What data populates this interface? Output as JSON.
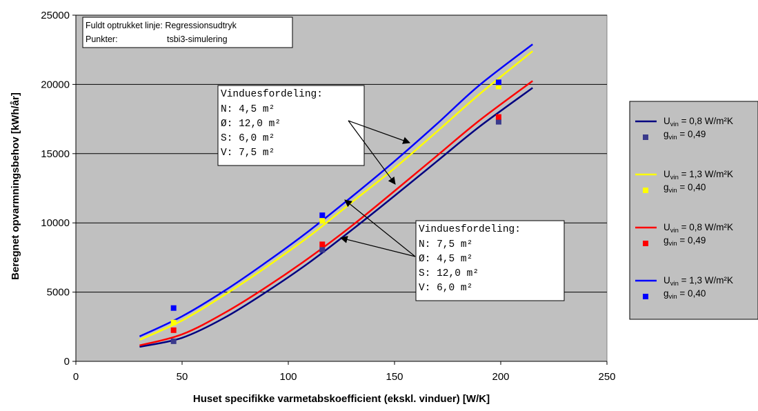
{
  "chart_data": {
    "type": "line",
    "xlabel": "Huset specifikke varmetabskoefficient (ekskl. vinduer)  [W/K]",
    "ylabel": "Beregnet opvarmningsbehov  [kWh/år]",
    "xlim": [
      0,
      250
    ],
    "ylim": [
      0,
      25000
    ],
    "x_ticks": [
      "0",
      "50",
      "100",
      "150",
      "200",
      "250"
    ],
    "y_ticks": [
      "0",
      "5000",
      "10000",
      "15000",
      "20000",
      "25000"
    ],
    "grid": "horizontal",
    "legend_position": "right",
    "note": {
      "line1": "Fuldt optrukket linje: Regressionsudtryk",
      "line2_label": "Punkter:",
      "line2_value": "tsbi3-simulering"
    },
    "annotation_top": {
      "title": "Vinduesfordeling:",
      "rows": [
        "N:  4,5 m²",
        "Ø: 12,0 m²",
        "S:  6,0 m²",
        "V:  7,5 m²"
      ]
    },
    "annotation_bottom": {
      "title": "Vinduesfordeling:",
      "rows": [
        "N:  7,5 m²",
        "Ø:  4,5 m²",
        "S: 12,0 m²",
        "V:  6,0 m²"
      ]
    },
    "series": [
      {
        "color": "#000080",
        "legend_u": "U",
        "legend_u_sub": "vin",
        "legend_u_val": " = 0,8 W/m²K",
        "legend_g": "g",
        "legend_g_sub": "vin",
        "legend_g_val": " = 0,49",
        "marker_color": "#3a3a8c",
        "line": [
          [
            30,
            1050
          ],
          [
            50,
            1700
          ],
          [
            70,
            3150
          ],
          [
            90,
            5050
          ],
          [
            110,
            7150
          ],
          [
            130,
            9500
          ],
          [
            150,
            11950
          ],
          [
            170,
            14450
          ],
          [
            190,
            16950
          ],
          [
            215,
            19750
          ]
        ],
        "points": [
          [
            46,
            1450
          ],
          [
            116,
            8050
          ],
          [
            199,
            17300
          ]
        ]
      },
      {
        "color": "#ffff00",
        "legend_u": "U",
        "legend_u_sub": "vin",
        "legend_u_val": " = 1,3 W/m²K",
        "legend_g": "g",
        "legend_g_sub": "vin",
        "legend_g_val": " = 0,40",
        "marker_color": "#ffff00",
        "line": [
          [
            30,
            1550
          ],
          [
            50,
            2950
          ],
          [
            70,
            4800
          ],
          [
            90,
            6850
          ],
          [
            110,
            9050
          ],
          [
            130,
            11500
          ],
          [
            150,
            13950
          ],
          [
            170,
            16600
          ],
          [
            190,
            19300
          ],
          [
            215,
            22400
          ]
        ],
        "points": [
          [
            46,
            2800
          ],
          [
            116,
            10150
          ],
          [
            199,
            19850
          ]
        ]
      },
      {
        "color": "#ff0000",
        "legend_u": "U",
        "legend_u_sub": "vin",
        "legend_u_val": " = 0,8 W/m²K",
        "legend_g": "g",
        "legend_g_sub": "vin",
        "legend_g_val": " = 0,49",
        "marker_color": "#ff0000",
        "line": [
          [
            30,
            1150
          ],
          [
            50,
            1950
          ],
          [
            70,
            3500
          ],
          [
            90,
            5400
          ],
          [
            110,
            7500
          ],
          [
            130,
            9800
          ],
          [
            150,
            12300
          ],
          [
            170,
            14850
          ],
          [
            190,
            17400
          ],
          [
            215,
            20250
          ]
        ],
        "points": [
          [
            46,
            2250
          ],
          [
            116,
            8450
          ],
          [
            199,
            17650
          ]
        ]
      },
      {
        "color": "#0000ff",
        "legend_u": "U",
        "legend_u_sub": "vin",
        "legend_u_val": " = 1,3 W/m²K",
        "legend_g": "g",
        "legend_g_sub": "vin",
        "legend_g_val": " = 0,40",
        "marker_color": "#0000ff",
        "line": [
          [
            30,
            1800
          ],
          [
            50,
            3250
          ],
          [
            70,
            5100
          ],
          [
            90,
            7200
          ],
          [
            110,
            9450
          ],
          [
            130,
            11900
          ],
          [
            150,
            14450
          ],
          [
            170,
            17150
          ],
          [
            190,
            19950
          ],
          [
            215,
            22900
          ]
        ],
        "points": [
          [
            46,
            3850
          ],
          [
            116,
            10550
          ],
          [
            199,
            20150
          ]
        ]
      }
    ],
    "colors": {
      "plot_background": "#c0c0c0",
      "gridline": "#000000",
      "legend_background": "#c0c0c0"
    }
  }
}
